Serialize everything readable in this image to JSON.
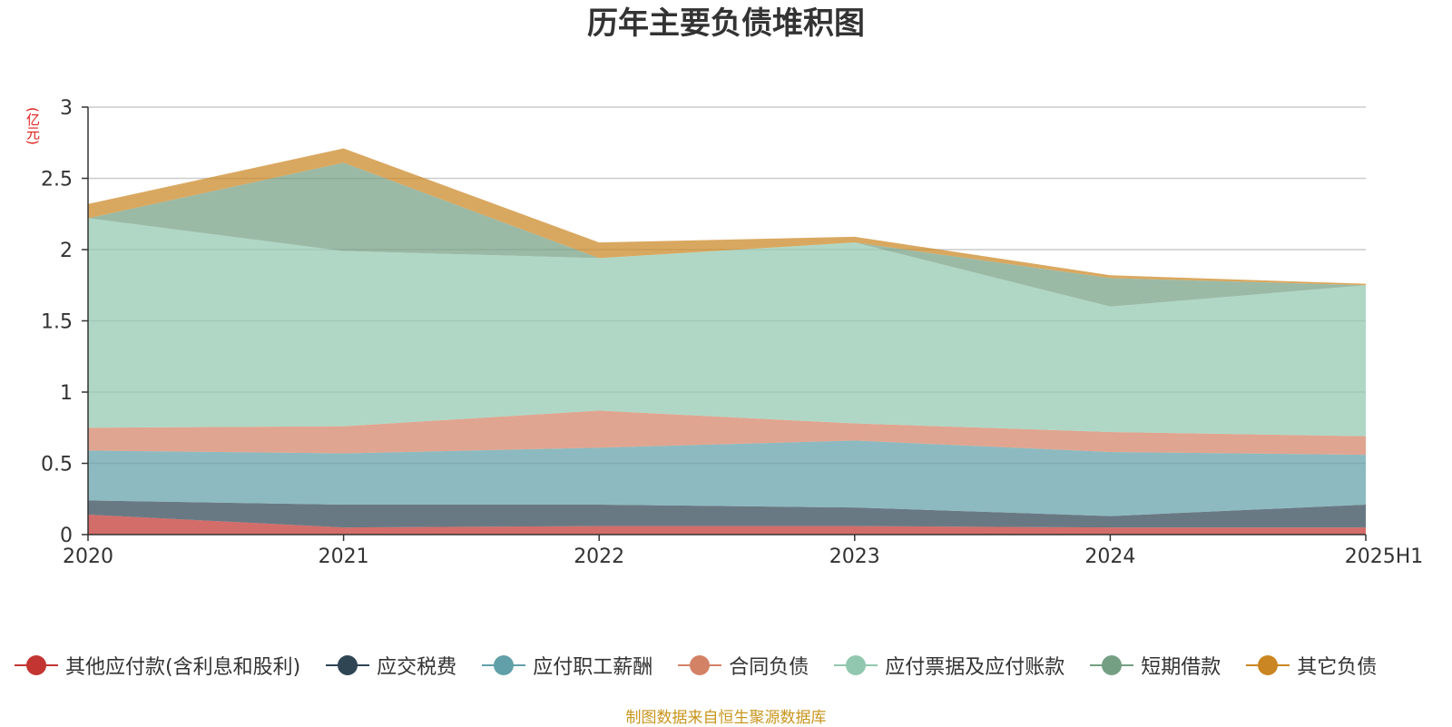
{
  "chart_data": {
    "type": "area",
    "stacked": true,
    "title": "历年主要负债堆积图",
    "unit_label": "(亿元)",
    "categories": [
      "2020",
      "2021",
      "2022",
      "2023",
      "2024",
      "2025H1"
    ],
    "y_ticks": [
      "0",
      "0.5",
      "1",
      "1.5",
      "2",
      "2.5",
      "3"
    ],
    "ylim": [
      0,
      3
    ],
    "grid": true,
    "legend_position": "bottom",
    "series": [
      {
        "name": "其他应付款(含利息和股利)",
        "color": "#c23531",
        "values": [
          0.14,
          0.05,
          0.06,
          0.06,
          0.05,
          0.05
        ]
      },
      {
        "name": "应交税费",
        "color": "#2f4554",
        "values": [
          0.1,
          0.16,
          0.15,
          0.13,
          0.08,
          0.16
        ]
      },
      {
        "name": "应付职工薪酬",
        "color": "#61a0a8",
        "values": [
          0.35,
          0.36,
          0.4,
          0.47,
          0.45,
          0.35
        ]
      },
      {
        "name": "合同负债",
        "color": "#d48265",
        "values": [
          0.16,
          0.19,
          0.26,
          0.12,
          0.14,
          0.13
        ]
      },
      {
        "name": "应付票据及应付账款",
        "color": "#91c7ae",
        "values": [
          1.47,
          1.23,
          1.07,
          1.27,
          0.88,
          1.06
        ]
      },
      {
        "name": "短期借款",
        "color": "#749f83",
        "values": [
          0.0,
          0.62,
          0.0,
          0.0,
          0.2,
          0.0
        ]
      },
      {
        "name": "其它负债",
        "color": "#ca8622",
        "values": [
          0.1,
          0.1,
          0.11,
          0.04,
          0.02,
          0.01
        ]
      }
    ],
    "source_note": "制图数据来自恒生聚源数据库"
  }
}
